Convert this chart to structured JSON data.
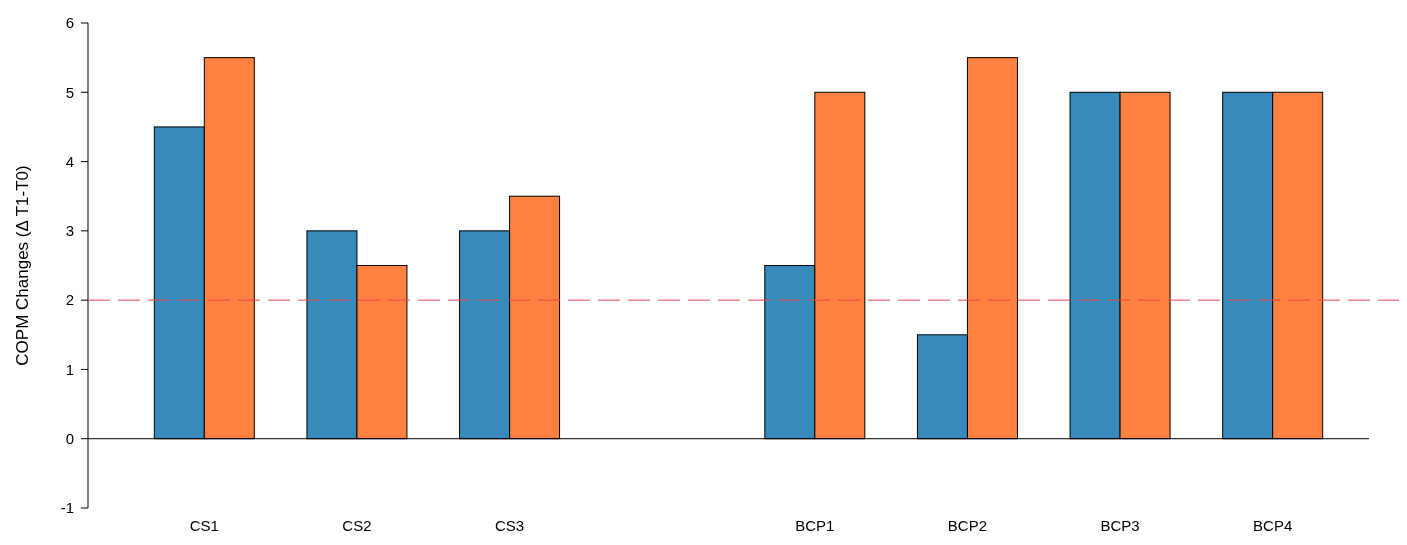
{
  "chart_data": {
    "type": "bar",
    "ylabel": "COPM Changes (Δ T1-T0)",
    "categories": [
      "CS1",
      "CS2",
      "CS3",
      null,
      "BCP1",
      "BCP2",
      "BCP3",
      "BCP4"
    ],
    "series": [
      {
        "color": "#368bbb",
        "values": [
          4.5,
          3,
          3,
          null,
          2.5,
          1.5,
          5,
          5
        ]
      },
      {
        "color": "#fe8142",
        "values": [
          5.5,
          2.5,
          3.5,
          null,
          5,
          5.5,
          5,
          5
        ]
      }
    ],
    "ylim": [
      -1,
      6
    ],
    "yticks": [
      -1,
      0,
      1,
      2,
      3,
      4,
      5,
      6
    ],
    "grid": false,
    "ref_lines": [
      {
        "axis": "y",
        "value": 2,
        "color": "#e8474a",
        "line_style": "dashed"
      }
    ]
  }
}
